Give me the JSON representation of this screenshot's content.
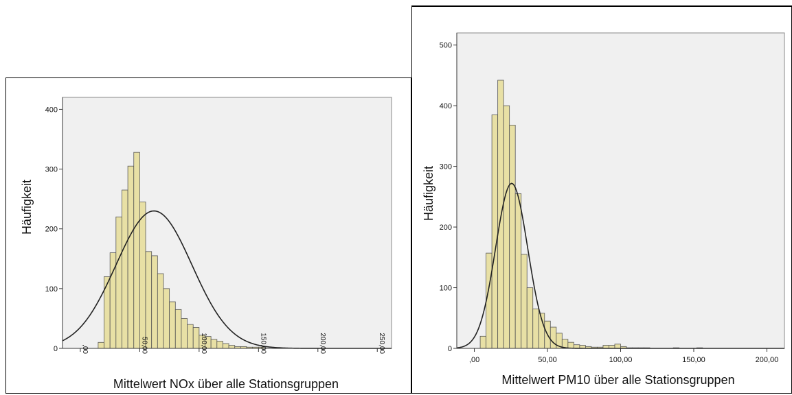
{
  "colors": {
    "bar_fill": "#e8e0a5",
    "bar_stroke": "#555555",
    "plot_bg": "#f0f0f0",
    "curve": "#222222"
  },
  "chart_data": [
    {
      "type": "bar",
      "subtype": "histogram with normal curve",
      "title": "",
      "xlabel": "Mittelwert NOx über alle Stationsgruppen",
      "ylabel": "Häufigkeit",
      "x_tick_labels": [
        ",00",
        "50,00",
        "100,00",
        "150,00",
        "200,00",
        "250,00"
      ],
      "x_ticks": [
        0,
        50,
        100,
        150,
        200,
        250
      ],
      "x_tick_labels_rotated": true,
      "y_ticks": [
        0,
        100,
        200,
        300,
        400
      ],
      "xlim": [
        -15,
        262
      ],
      "ylim": [
        0,
        420
      ],
      "bin_width": 5,
      "bin_start": 15,
      "values": [
        10,
        120,
        160,
        220,
        265,
        305,
        328,
        245,
        162,
        155,
        125,
        100,
        78,
        65,
        50,
        40,
        35,
        22,
        20,
        15,
        12,
        8,
        5,
        3,
        3,
        2,
        2,
        2,
        0,
        0,
        0,
        0,
        0,
        0,
        0,
        0,
        0,
        0,
        0,
        0,
        0,
        0,
        0
      ],
      "normal_curve": {
        "mean": 62,
        "sd": 32,
        "peak": 230
      },
      "grid": false
    },
    {
      "type": "bar",
      "subtype": "histogram with normal curve",
      "title": "",
      "xlabel": "Mittelwert PM10 über alle Stationsgruppen",
      "ylabel": "Häufigkeit",
      "x_tick_labels": [
        ",00",
        "50,00",
        "100,00",
        "150,00",
        "200,00"
      ],
      "x_ticks": [
        0,
        50,
        100,
        150,
        200
      ],
      "x_tick_labels_rotated": false,
      "y_ticks": [
        0,
        100,
        200,
        300,
        400,
        500
      ],
      "y_tick_labels": [
        "0",
        "100",
        "200",
        "300",
        "400",
        "500"
      ],
      "xlim": [
        -12,
        212
      ],
      "ylim": [
        0,
        520
      ],
      "bin_width": 4,
      "bin_start": 4,
      "values": [
        20,
        157,
        385,
        442,
        400,
        368,
        255,
        155,
        100,
        65,
        58,
        45,
        35,
        25,
        15,
        10,
        6,
        5,
        3,
        2,
        2,
        5,
        5,
        7,
        3,
        1,
        1,
        1,
        1,
        0,
        0,
        0,
        0,
        1,
        0,
        0,
        0,
        1,
        0,
        0
      ],
      "normal_curve": {
        "mean": 25.5,
        "sd": 11,
        "peak": 272
      },
      "grid": false
    }
  ]
}
